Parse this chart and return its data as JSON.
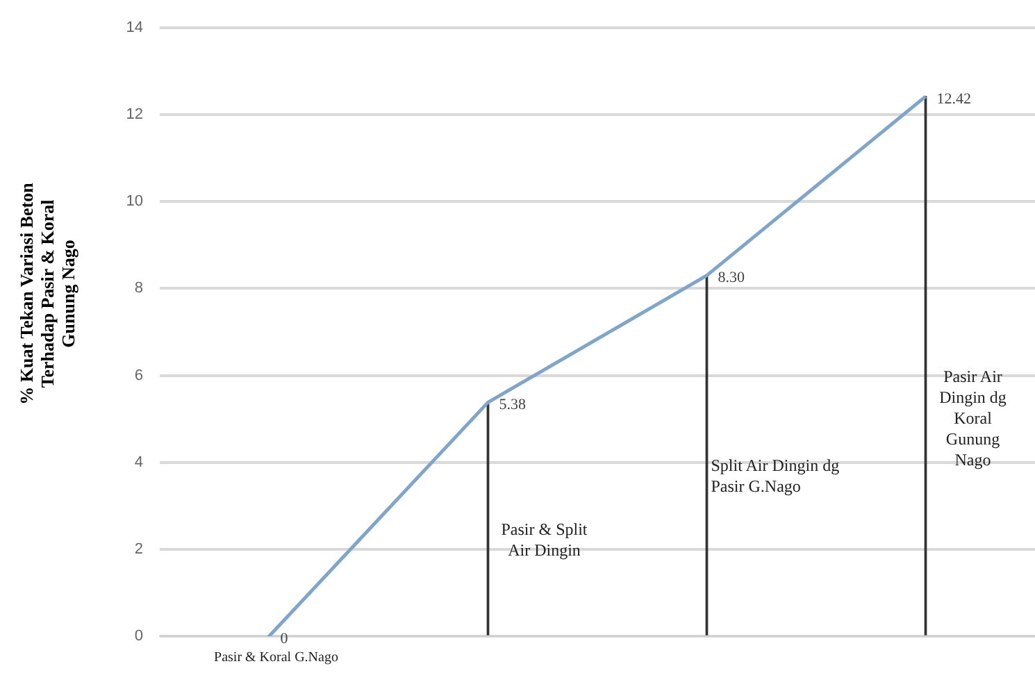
{
  "chart_data": {
    "type": "line",
    "ylabel": "% Kuat Tekan Variasi Beton Terhadap Pasir & Koral Gunung Nago",
    "categories": [
      "Pasir & Koral G.Nago",
      "Pasir & Split Air Dingin",
      "Split  Air  Dingin dg Pasir G.Nago",
      "Pasir Air Dingin dg Koral Gunung Nago"
    ],
    "series": [
      {
        "color": "#7ea6cc",
        "values": [
          0,
          5.38,
          8.3,
          12.42
        ],
        "value_labels": [
          "0",
          "5.38",
          "8.30",
          "12.42"
        ]
      },
      {
        "type": "bar",
        "color": "#333333",
        "values": [
          0,
          5.38,
          8.3,
          12.42
        ]
      }
    ],
    "ylim": [
      0,
      14
    ],
    "yticks": [
      0,
      2,
      4,
      6,
      8,
      10,
      12,
      14
    ],
    "grid": "y",
    "legend": false,
    "marker": "none"
  }
}
